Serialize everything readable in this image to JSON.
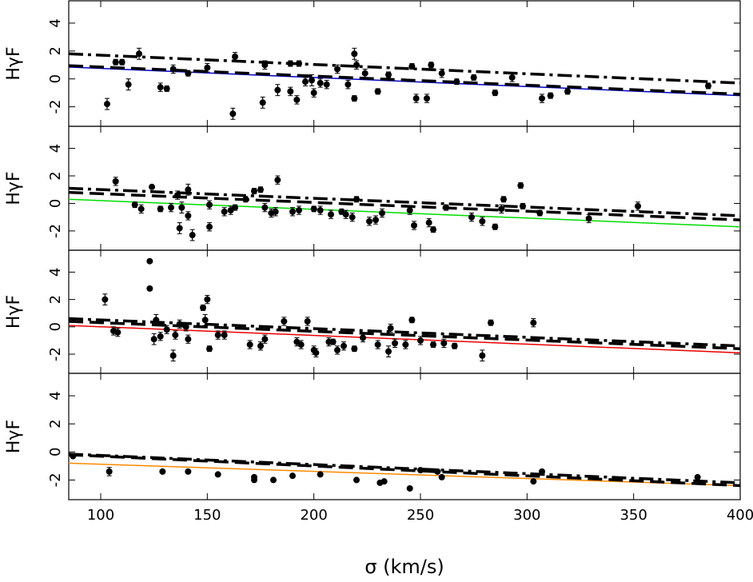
{
  "chart_data": [
    {
      "type": "scatter",
      "ylabel": "HγF",
      "xlim": [
        85,
        400
      ],
      "ylim": [
        -3.4,
        5.6
      ],
      "yticks": [
        -2,
        0,
        2,
        4
      ],
      "xticks": [
        100,
        150,
        200,
        250,
        300,
        350,
        400
      ],
      "color": "#000000",
      "x": [
        103,
        107,
        110,
        113,
        118,
        128,
        131,
        134,
        141,
        150,
        162,
        163,
        176,
        177,
        183,
        189,
        189,
        192,
        193,
        196,
        199,
        200,
        203,
        206,
        211,
        216,
        219,
        219,
        220,
        224,
        230,
        235,
        246,
        248,
        253,
        255,
        260,
        267,
        275,
        285,
        293,
        307,
        311,
        319,
        385
      ],
      "values": [
        -1.8,
        1.2,
        1.2,
        -0.4,
        1.8,
        -0.6,
        -0.7,
        0.7,
        0.4,
        0.8,
        -2.5,
        1.6,
        -1.7,
        1.0,
        -0.8,
        1.1,
        -0.9,
        -1.5,
        1.1,
        -0.2,
        -0.1,
        -1.0,
        -0.3,
        -0.4,
        0.7,
        -0.4,
        -1.4,
        1.8,
        1.0,
        0.4,
        -0.9,
        0.3,
        0.9,
        -1.4,
        -1.4,
        1.0,
        0.4,
        -0.2,
        0.1,
        -1.0,
        0.1,
        -1.4,
        -1.2,
        -0.9,
        -0.5
      ],
      "yerr": [
        0.4,
        0.2,
        0.2,
        0.4,
        0.4,
        0.3,
        0.2,
        0.3,
        0.2,
        0.3,
        0.4,
        0.3,
        0.4,
        0.3,
        0.4,
        0.2,
        0.3,
        0.3,
        0.2,
        0.3,
        0.4,
        0.3,
        0.3,
        0.3,
        0.3,
        0.3,
        0.2,
        0.4,
        0.3,
        0.3,
        0.2,
        0.2,
        0.2,
        0.3,
        0.3,
        0.2,
        0.3,
        0.2,
        0.2,
        0.2,
        0.3,
        0.3,
        0.2,
        0.2,
        0.2
      ],
      "lines": [
        {
          "x": [
            85,
            400
          ],
          "values": [
            0.85,
            -1.2
          ],
          "color": "#0000cc",
          "style": "solid"
        },
        {
          "x": [
            85,
            400
          ],
          "values": [
            0.95,
            -1.1
          ],
          "color": "#000000",
          "style": "dash"
        },
        {
          "x": [
            85,
            400
          ],
          "values": [
            1.8,
            -0.3
          ],
          "color": "#000000",
          "style": "dashdot"
        }
      ]
    },
    {
      "type": "scatter",
      "ylabel": "HγF",
      "xlim": [
        85,
        400
      ],
      "ylim": [
        -3.4,
        5.6
      ],
      "yticks": [
        -2,
        0,
        2,
        4
      ],
      "xticks": [
        100,
        150,
        200,
        250,
        300,
        350,
        400
      ],
      "color": "#000000",
      "x": [
        107,
        116,
        119,
        124,
        128,
        133,
        136,
        137,
        138,
        141,
        141,
        143,
        151,
        151,
        158,
        161,
        163,
        168,
        172,
        175,
        177,
        180,
        182,
        183,
        190,
        193,
        200,
        203,
        208,
        213,
        215,
        218,
        220,
        226,
        229,
        232,
        245,
        247,
        254,
        256,
        262,
        274,
        279,
        285,
        288,
        289,
        297,
        298,
        306,
        329,
        352
      ],
      "values": [
        1.6,
        -0.1,
        -0.4,
        1.2,
        -0.4,
        -0.3,
        0.6,
        -1.8,
        -0.3,
        -0.9,
        1.0,
        -2.3,
        -1.7,
        -0.1,
        -0.6,
        -0.5,
        -0.3,
        0.3,
        0.9,
        1.0,
        -0.3,
        -0.7,
        -0.6,
        1.7,
        -0.6,
        -0.5,
        -0.4,
        -0.5,
        -0.8,
        -0.6,
        -0.8,
        -1.0,
        0.3,
        -1.3,
        -1.2,
        -0.7,
        -0.5,
        -1.6,
        -1.4,
        -1.9,
        -0.3,
        -1.0,
        -1.3,
        -1.7,
        -0.4,
        0.3,
        1.3,
        -0.2,
        -0.7,
        -1.1,
        -0.2
      ],
      "yerr": [
        0.3,
        0.2,
        0.3,
        0.1,
        0.2,
        0.3,
        0.3,
        0.4,
        0.4,
        0.3,
        0.4,
        0.4,
        0.3,
        0.3,
        0.3,
        0.3,
        0.2,
        0.2,
        0.2,
        0.2,
        0.3,
        0.3,
        0.3,
        0.3,
        0.3,
        0.3,
        0.2,
        0.3,
        0.3,
        0.2,
        0.3,
        0.3,
        0.2,
        0.3,
        0.3,
        0.3,
        0.3,
        0.3,
        0.3,
        0.2,
        0.2,
        0.3,
        0.3,
        0.2,
        0.3,
        0.2,
        0.2,
        0.2,
        0.2,
        0.3,
        0.3
      ],
      "lines": [
        {
          "x": [
            85,
            400
          ],
          "values": [
            0.3,
            -1.7
          ],
          "color": "#00dd00",
          "style": "solid"
        },
        {
          "x": [
            85,
            400
          ],
          "values": [
            0.8,
            -1.2
          ],
          "color": "#000000",
          "style": "dash"
        },
        {
          "x": [
            85,
            400
          ],
          "values": [
            1.1,
            -0.9
          ],
          "color": "#000000",
          "style": "dashdot"
        }
      ]
    },
    {
      "type": "scatter",
      "ylabel": "HγF",
      "xlim": [
        85,
        400
      ],
      "ylim": [
        -3.4,
        5.6
      ],
      "yticks": [
        -2,
        0,
        2,
        4
      ],
      "xticks": [
        100,
        150,
        200,
        250,
        300,
        350,
        400
      ],
      "color": "#000000",
      "x": [
        102,
        106,
        108,
        123,
        123,
        125,
        126,
        128,
        131,
        134,
        135,
        137,
        140,
        141,
        148,
        149,
        150,
        151,
        155,
        158,
        170,
        175,
        177,
        186,
        192,
        194,
        197,
        200,
        201,
        207,
        209,
        211,
        214,
        219,
        223,
        230,
        235,
        236,
        238,
        243,
        246,
        250,
        256,
        261,
        266,
        279,
        283,
        303
      ],
      "values": [
        2.0,
        -0.3,
        -0.4,
        4.8,
        2.8,
        -0.9,
        0.5,
        -0.7,
        -0.2,
        -2.1,
        -0.6,
        0.2,
        0.0,
        -0.9,
        1.4,
        0.5,
        2.0,
        -1.6,
        -0.6,
        -0.6,
        -1.3,
        -1.4,
        -0.9,
        0.4,
        -1.1,
        -1.3,
        0.4,
        -1.7,
        -1.9,
        -1.1,
        -1.1,
        -1.7,
        -1.4,
        -1.6,
        -0.8,
        -1.3,
        -1.8,
        -0.1,
        -1.2,
        -1.3,
        0.5,
        -1.0,
        -1.3,
        -1.2,
        -1.4,
        -2.1,
        0.3,
        0.3
      ],
      "yerr": [
        0.4,
        0.3,
        0.3,
        0.1,
        0.1,
        0.4,
        0.4,
        0.3,
        0.3,
        0.4,
        0.3,
        0.3,
        0.3,
        0.3,
        0.2,
        0.4,
        0.3,
        0.2,
        0.3,
        0.3,
        0.3,
        0.3,
        0.3,
        0.3,
        0.3,
        0.3,
        0.3,
        0.3,
        0.3,
        0.3,
        0.2,
        0.3,
        0.3,
        0.2,
        0.3,
        0.3,
        0.4,
        0.3,
        0.3,
        0.3,
        0.2,
        0.3,
        0.2,
        0.3,
        0.2,
        0.4,
        0.2,
        0.3
      ],
      "lines": [
        {
          "x": [
            85,
            400
          ],
          "values": [
            0.1,
            -1.9
          ],
          "color": "#ee0000",
          "style": "solid"
        },
        {
          "x": [
            85,
            400
          ],
          "values": [
            0.4,
            -1.6
          ],
          "color": "#000000",
          "style": "dash"
        },
        {
          "x": [
            85,
            400
          ],
          "values": [
            0.6,
            -1.4
          ],
          "color": "#000000",
          "style": "dashdot"
        }
      ]
    },
    {
      "type": "scatter",
      "ylabel": "HγF",
      "xlabel": "σ (km/s)",
      "xlim": [
        85,
        400
      ],
      "ylim": [
        -3.4,
        5.6
      ],
      "yticks": [
        -2,
        0,
        2,
        4
      ],
      "xticks": [
        100,
        150,
        200,
        250,
        300,
        350,
        400
      ],
      "color": "#000000",
      "x": [
        87,
        104,
        129,
        141,
        155,
        172,
        172,
        181,
        190,
        203,
        220,
        231,
        233,
        245,
        250,
        258,
        260,
        303,
        307,
        380
      ],
      "values": [
        -0.3,
        -1.4,
        -1.4,
        -1.4,
        -1.6,
        -1.8,
        -2.0,
        -2.0,
        -1.7,
        -1.6,
        -2.0,
        -2.2,
        -2.1,
        -2.6,
        -1.3,
        -1.4,
        -1.8,
        -2.1,
        -1.4,
        -1.8
      ],
      "yerr": [
        0.1,
        0.3,
        0.1,
        0.1,
        0.1,
        0.1,
        0.1,
        0.1,
        0.1,
        0.1,
        0.1,
        0.1,
        0.1,
        0.1,
        0.1,
        0.1,
        0.1,
        0.1,
        0.1,
        0.1
      ],
      "lines": [
        {
          "x": [
            85,
            400
          ],
          "values": [
            -0.8,
            -2.4
          ],
          "color": "#ff8800",
          "style": "solid"
        },
        {
          "x": [
            85,
            400
          ],
          "values": [
            -0.2,
            -2.4
          ],
          "color": "#000000",
          "style": "dash"
        },
        {
          "x": [
            85,
            400
          ],
          "values": [
            -0.15,
            -2.2
          ],
          "color": "#000000",
          "style": "dashdot"
        }
      ]
    }
  ]
}
